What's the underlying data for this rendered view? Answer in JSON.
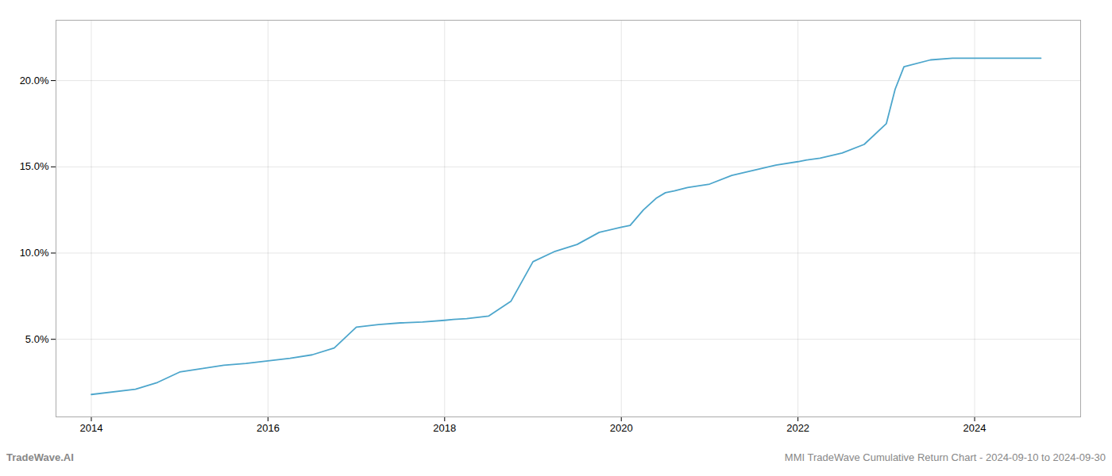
{
  "chart_data": {
    "type": "line",
    "x": [
      2014.0,
      2014.5,
      2014.75,
      2015.0,
      2015.25,
      2015.5,
      2015.75,
      2016.0,
      2016.25,
      2016.5,
      2016.75,
      2017.0,
      2017.25,
      2017.5,
      2017.75,
      2018.0,
      2018.1,
      2018.25,
      2018.5,
      2018.75,
      2019.0,
      2019.25,
      2019.5,
      2019.75,
      2020.0,
      2020.1,
      2020.25,
      2020.4,
      2020.5,
      2020.6,
      2020.75,
      2021.0,
      2021.25,
      2021.5,
      2021.75,
      2022.0,
      2022.1,
      2022.25,
      2022.5,
      2022.75,
      2023.0,
      2023.1,
      2023.2,
      2023.5,
      2023.75,
      2024.0,
      2024.5,
      2024.75
    ],
    "values": [
      1.8,
      2.1,
      2.5,
      3.1,
      3.3,
      3.5,
      3.6,
      3.75,
      3.9,
      4.1,
      4.5,
      5.7,
      5.85,
      5.95,
      6.0,
      6.1,
      6.15,
      6.2,
      6.35,
      7.2,
      9.5,
      10.1,
      10.5,
      11.2,
      11.5,
      11.6,
      12.5,
      13.2,
      13.5,
      13.6,
      13.8,
      14.0,
      14.5,
      14.8,
      15.1,
      15.3,
      15.4,
      15.5,
      15.8,
      16.3,
      17.5,
      19.5,
      20.8,
      21.2,
      21.3,
      21.3,
      21.3,
      21.3
    ],
    "color": "#4da6cc",
    "xlim": [
      2013.6,
      2025.2
    ],
    "xticks": [
      2014,
      2016,
      2018,
      2020,
      2022,
      2024
    ],
    "ylim": [
      0.5,
      23.5
    ],
    "yticks": [
      {
        "value": 5.0,
        "label": "5.0%"
      },
      {
        "value": 10.0,
        "label": "10.0%"
      },
      {
        "value": 15.0,
        "label": "15.0%"
      },
      {
        "value": 20.0,
        "label": "20.0%"
      }
    ],
    "grid": true,
    "annotations": [
      "TradeWave.AI",
      "MMI TradeWave Cumulative Return Chart - 2024-09-10 to 2024-09-30"
    ]
  }
}
